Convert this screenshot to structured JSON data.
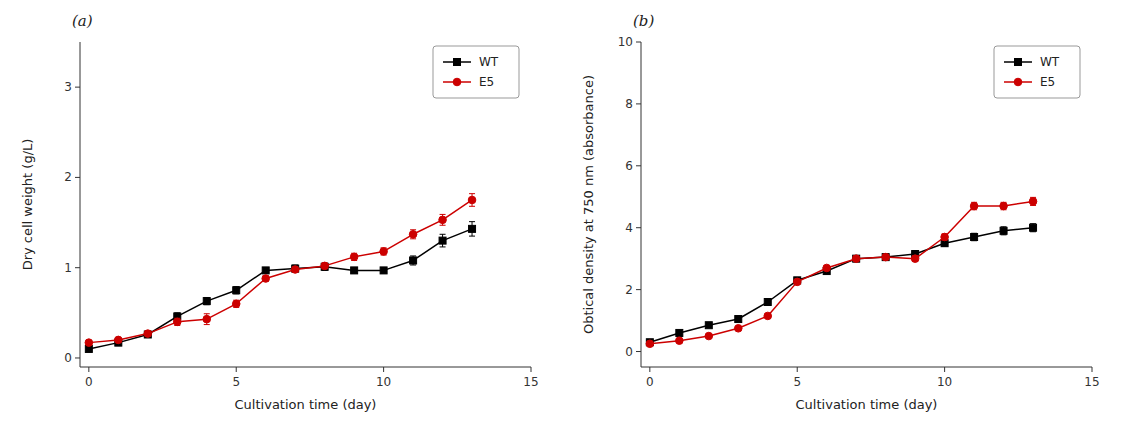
{
  "chart_data": [
    {
      "type": "line",
      "title": "(a)",
      "x_label": "Cultivation time (day)",
      "y_label": "Dry cell weight (g/L)",
      "x": [
        0,
        1,
        2,
        3,
        4,
        5,
        6,
        7,
        8,
        9,
        10,
        11,
        12,
        13
      ],
      "xlim": [
        -0.3,
        15
      ],
      "ylim": [
        -0.1,
        3.5
      ],
      "xticks": [
        0,
        5,
        10,
        15
      ],
      "yticks": [
        0,
        1,
        2,
        3
      ],
      "legend": "upper right",
      "series": [
        {
          "name": "WT",
          "color": "#000000",
          "marker": "square",
          "values": [
            0.1,
            0.17,
            0.26,
            0.46,
            0.63,
            0.75,
            0.97,
            0.99,
            1.01,
            0.97,
            0.97,
            1.08,
            1.3,
            1.43
          ],
          "errors": [
            0.02,
            0.03,
            0.03,
            0.04,
            0.04,
            0.04,
            0.03,
            0.04,
            0.04,
            0.03,
            0.03,
            0.05,
            0.07,
            0.08
          ]
        },
        {
          "name": "E5",
          "color": "#cc0000",
          "marker": "circle",
          "values": [
            0.17,
            0.2,
            0.27,
            0.4,
            0.43,
            0.6,
            0.88,
            0.98,
            1.02,
            1.12,
            1.18,
            1.37,
            1.53,
            1.75
          ],
          "errors": [
            0.02,
            0.02,
            0.03,
            0.04,
            0.06,
            0.04,
            0.03,
            0.03,
            0.03,
            0.04,
            0.04,
            0.05,
            0.06,
            0.07
          ]
        }
      ]
    },
    {
      "type": "line",
      "title": "(b)",
      "x_label": "Cultivation time (day)",
      "y_label": "Obtical density at 750 nm (absorbance)",
      "x": [
        0,
        1,
        2,
        3,
        4,
        5,
        6,
        7,
        8,
        9,
        10,
        11,
        12,
        13
      ],
      "xlim": [
        -0.3,
        15
      ],
      "ylim": [
        -0.5,
        10
      ],
      "xticks": [
        0,
        5,
        10,
        15
      ],
      "yticks": [
        0,
        2,
        4,
        6,
        8,
        10
      ],
      "legend": "upper right",
      "series": [
        {
          "name": "WT",
          "color": "#000000",
          "marker": "square",
          "values": [
            0.3,
            0.6,
            0.85,
            1.05,
            1.6,
            2.3,
            2.6,
            3.0,
            3.05,
            3.15,
            3.5,
            3.7,
            3.9,
            4.0
          ],
          "errors": [
            0.03,
            0.04,
            0.06,
            0.08,
            0.07,
            0.07,
            0.07,
            0.08,
            0.09,
            0.1,
            0.1,
            0.12,
            0.13,
            0.13
          ]
        },
        {
          "name": "E5",
          "color": "#cc0000",
          "marker": "circle",
          "values": [
            0.25,
            0.35,
            0.5,
            0.75,
            1.15,
            2.25,
            2.7,
            3.0,
            3.05,
            3.0,
            3.7,
            4.7,
            4.7,
            4.85
          ],
          "errors": [
            0.03,
            0.03,
            0.04,
            0.05,
            0.07,
            0.08,
            0.08,
            0.09,
            0.09,
            0.09,
            0.1,
            0.12,
            0.12,
            0.13
          ]
        }
      ]
    }
  ]
}
